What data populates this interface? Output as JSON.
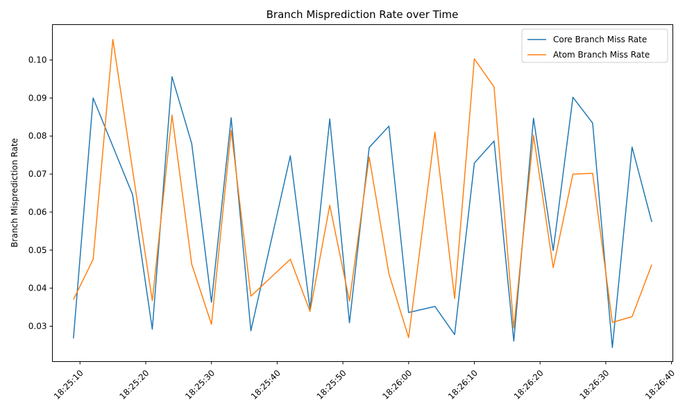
{
  "chart_data": {
    "type": "line",
    "title": "Branch Misprediction Rate over Time",
    "xlabel": "",
    "ylabel": "Branch Misprediction Rate",
    "x_type": "time",
    "x": [
      "18:25:09",
      "18:25:12",
      "18:25:15",
      "18:25:18",
      "18:25:21",
      "18:25:24",
      "18:25:27",
      "18:25:30",
      "18:25:33",
      "18:25:36",
      "18:25:39",
      "18:25:42",
      "18:25:45",
      "18:25:48",
      "18:25:51",
      "18:25:54",
      "18:25:57",
      "18:26:00",
      "18:26:04",
      "18:26:07",
      "18:26:10",
      "18:26:13",
      "18:26:16",
      "18:26:19",
      "18:26:22",
      "18:26:25",
      "18:26:28",
      "18:26:31",
      "18:26:34",
      "18:26:37"
    ],
    "series": [
      {
        "name": "Core Branch Miss Rate",
        "color": "#1f77b4",
        "values": [
          0.0268,
          0.09,
          null,
          0.0646,
          0.0292,
          0.0956,
          0.078,
          0.0363,
          0.0848,
          0.0288,
          null,
          0.0748,
          0.0345,
          0.0845,
          0.0309,
          0.077,
          0.0826,
          0.0336,
          0.0352,
          0.0278,
          0.0729,
          0.0787,
          0.0261,
          0.0847,
          0.0499,
          0.0902,
          0.0834,
          0.0244,
          0.0771,
          0.0574
        ]
      },
      {
        "name": "Atom Branch Miss Rate",
        "color": "#ff7f0e",
        "values": [
          0.037,
          0.0476,
          0.1054,
          null,
          0.0367,
          0.0855,
          0.0463,
          0.0305,
          0.0815,
          0.0379,
          null,
          0.0476,
          0.0339,
          0.0618,
          0.0366,
          0.0745,
          0.0438,
          0.027,
          0.081,
          0.0373,
          0.1003,
          0.0929,
          0.0295,
          0.0802,
          0.0454,
          0.07,
          0.0702,
          0.031,
          0.0325,
          0.0462
        ]
      }
    ],
    "x_ticks": [
      "18:25:10",
      "18:25:20",
      "18:25:30",
      "18:25:40",
      "18:25:50",
      "18:26:00",
      "18:26:10",
      "18:26:20",
      "18:26:30",
      "18:26:40"
    ],
    "y_ticks": [
      0.03,
      0.04,
      0.05,
      0.06,
      0.07,
      0.08,
      0.09,
      0.1
    ],
    "y_tick_labels": [
      "0.03",
      "0.04",
      "0.05",
      "0.06",
      "0.07",
      "0.08",
      "0.09",
      "0.10"
    ],
    "xlim": [
      "18:25:05.8",
      "18:26:40.2"
    ],
    "ylim": [
      0.0207,
      0.1093
    ],
    "legend_position": "top-right",
    "grid": false
  }
}
